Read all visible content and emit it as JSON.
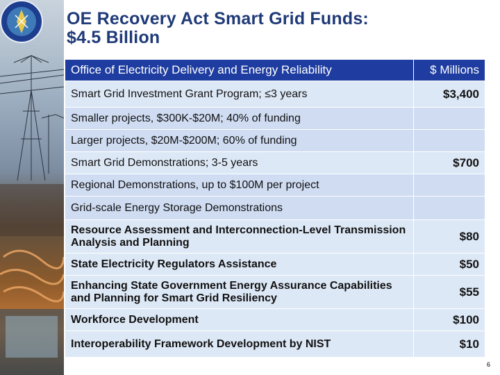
{
  "title_line1": "OE Recovery Act Smart Grid Funds:",
  "title_line2": "$4.5 Billion",
  "table": {
    "header_label": "Office of Electricity Delivery and Energy Reliability",
    "header_amount": "$ Millions",
    "rows": [
      {
        "label": "Smart Grid Investment Grant Program; ≤3 years",
        "amount": "$3,400"
      },
      {
        "label": "Smaller projects, $300K-$20M; 40% of funding",
        "amount": ""
      },
      {
        "label": "Larger projects, $20M-$200M; 60% of funding",
        "amount": ""
      },
      {
        "label": "Smart Grid Demonstrations; 3-5 years",
        "amount": "$700"
      },
      {
        "label": "Regional Demonstrations, up to $100M per project",
        "amount": ""
      },
      {
        "label": "Grid-scale Energy Storage Demonstrations",
        "amount": ""
      },
      {
        "label": "Resource Assessment and Interconnection-Level Transmission Analysis and Planning",
        "amount": "$80"
      },
      {
        "label": "State Electricity Regulators Assistance",
        "amount": "$50"
      },
      {
        "label": "Enhancing State Government Energy Assurance Capabilities and Planning for Smart Grid Resiliency",
        "amount": "$55"
      },
      {
        "label": "Workforce Development",
        "amount": "$100"
      },
      {
        "label": "Interoperability Framework Development by NIST",
        "amount": "$10"
      }
    ]
  },
  "page_number": "6",
  "colors": {
    "title": "#1f3a78",
    "header_bg": "#1f3da0",
    "row_bg": "#dde8f6"
  },
  "icons": {
    "seal": "doe-seal-icon"
  }
}
